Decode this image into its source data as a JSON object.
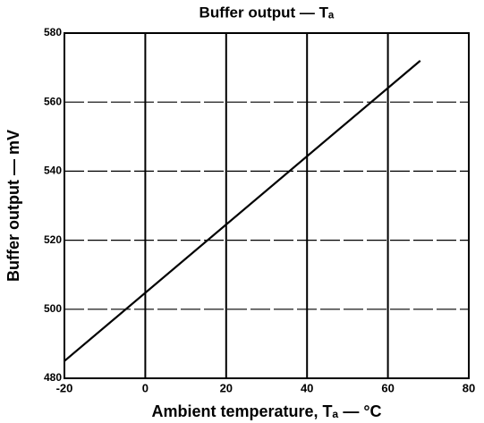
{
  "chart_data": {
    "type": "line",
    "title": "Buffer output — Tₐ",
    "xlabel": "Ambient temperature, Tₐ — °C",
    "ylabel": "Buffer output — mV",
    "x": [
      -20,
      68
    ],
    "series": [
      {
        "color": "#000000",
        "values": [
          485,
          572
        ]
      }
    ],
    "xlim": [
      -20,
      80
    ],
    "xticks": [
      -20,
      0,
      20,
      40,
      60,
      80
    ],
    "ylim": [
      480,
      580
    ],
    "yticks": [
      480,
      500,
      520,
      540,
      560,
      580
    ],
    "grid": true
  }
}
